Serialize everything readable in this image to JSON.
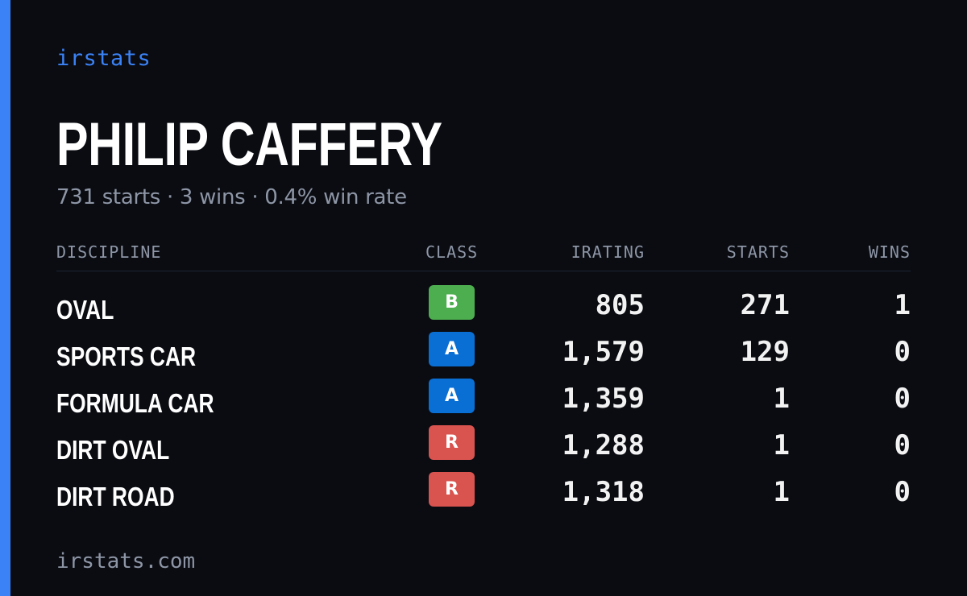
{
  "brand": "irstats",
  "driver": {
    "name": "PHILIP CAFFERY",
    "summary": "731 starts · 3 wins · 0.4% win rate"
  },
  "table": {
    "headers": {
      "discipline": "DISCIPLINE",
      "class": "CLASS",
      "irating": "IRATING",
      "starts": "STARTS",
      "wins": "WINS"
    },
    "rows": [
      {
        "discipline": "OVAL",
        "class": "B",
        "class_color": "#4cae4f",
        "irating": "805",
        "starts": "271",
        "wins": "1"
      },
      {
        "discipline": "SPORTS CAR",
        "class": "A",
        "class_color": "#0a6fd4",
        "irating": "1,579",
        "starts": "129",
        "wins": "0"
      },
      {
        "discipline": "FORMULA CAR",
        "class": "A",
        "class_color": "#0a6fd4",
        "irating": "1,359",
        "starts": "1",
        "wins": "0"
      },
      {
        "discipline": "DIRT OVAL",
        "class": "R",
        "class_color": "#d9534f",
        "irating": "1,288",
        "starts": "1",
        "wins": "0"
      },
      {
        "discipline": "DIRT ROAD",
        "class": "R",
        "class_color": "#d9534f",
        "irating": "1,318",
        "starts": "1",
        "wins": "0"
      }
    ]
  },
  "footer": "irstats.com",
  "colors": {
    "background": "#0a0c12",
    "accent": "#3b82f6",
    "muted_text": "#8e96a6"
  }
}
